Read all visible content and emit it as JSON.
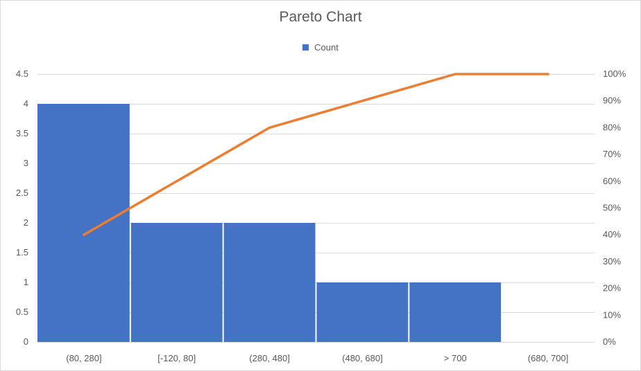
{
  "chart_data": {
    "type": "bar",
    "title": "Pareto Chart",
    "categories": [
      "(80, 280]",
      "[-120, 80]",
      "(280, 480]",
      "(480, 680]",
      "> 700",
      "(680, 700]"
    ],
    "series": [
      {
        "name": "Count",
        "type": "bar",
        "values": [
          4,
          2,
          2,
          1,
          1,
          0
        ],
        "color": "#4472C4"
      },
      {
        "type": "line",
        "axis": "secondary",
        "values": [
          0.4,
          0.6,
          0.8,
          0.9,
          1.0,
          1.0
        ],
        "color": "#ED7D31"
      }
    ],
    "ylim": [
      0,
      4.5
    ],
    "yticks": [
      0,
      0.5,
      1,
      1.5,
      2,
      2.5,
      3,
      3.5,
      4,
      4.5
    ],
    "ytick_labels": [
      "0",
      "0.5",
      "1",
      "1.5",
      "2",
      "2.5",
      "3",
      "3.5",
      "4",
      "4.5"
    ],
    "y2lim": [
      0,
      1
    ],
    "y2ticks": [
      0,
      0.1,
      0.2,
      0.3,
      0.4,
      0.5,
      0.6,
      0.7,
      0.8,
      0.9,
      1.0
    ],
    "y2tick_labels": [
      "0%",
      "10%",
      "20%",
      "30%",
      "40%",
      "50%",
      "60%",
      "70%",
      "80%",
      "90%",
      "100%"
    ],
    "grid": true,
    "legend_position": "top"
  }
}
